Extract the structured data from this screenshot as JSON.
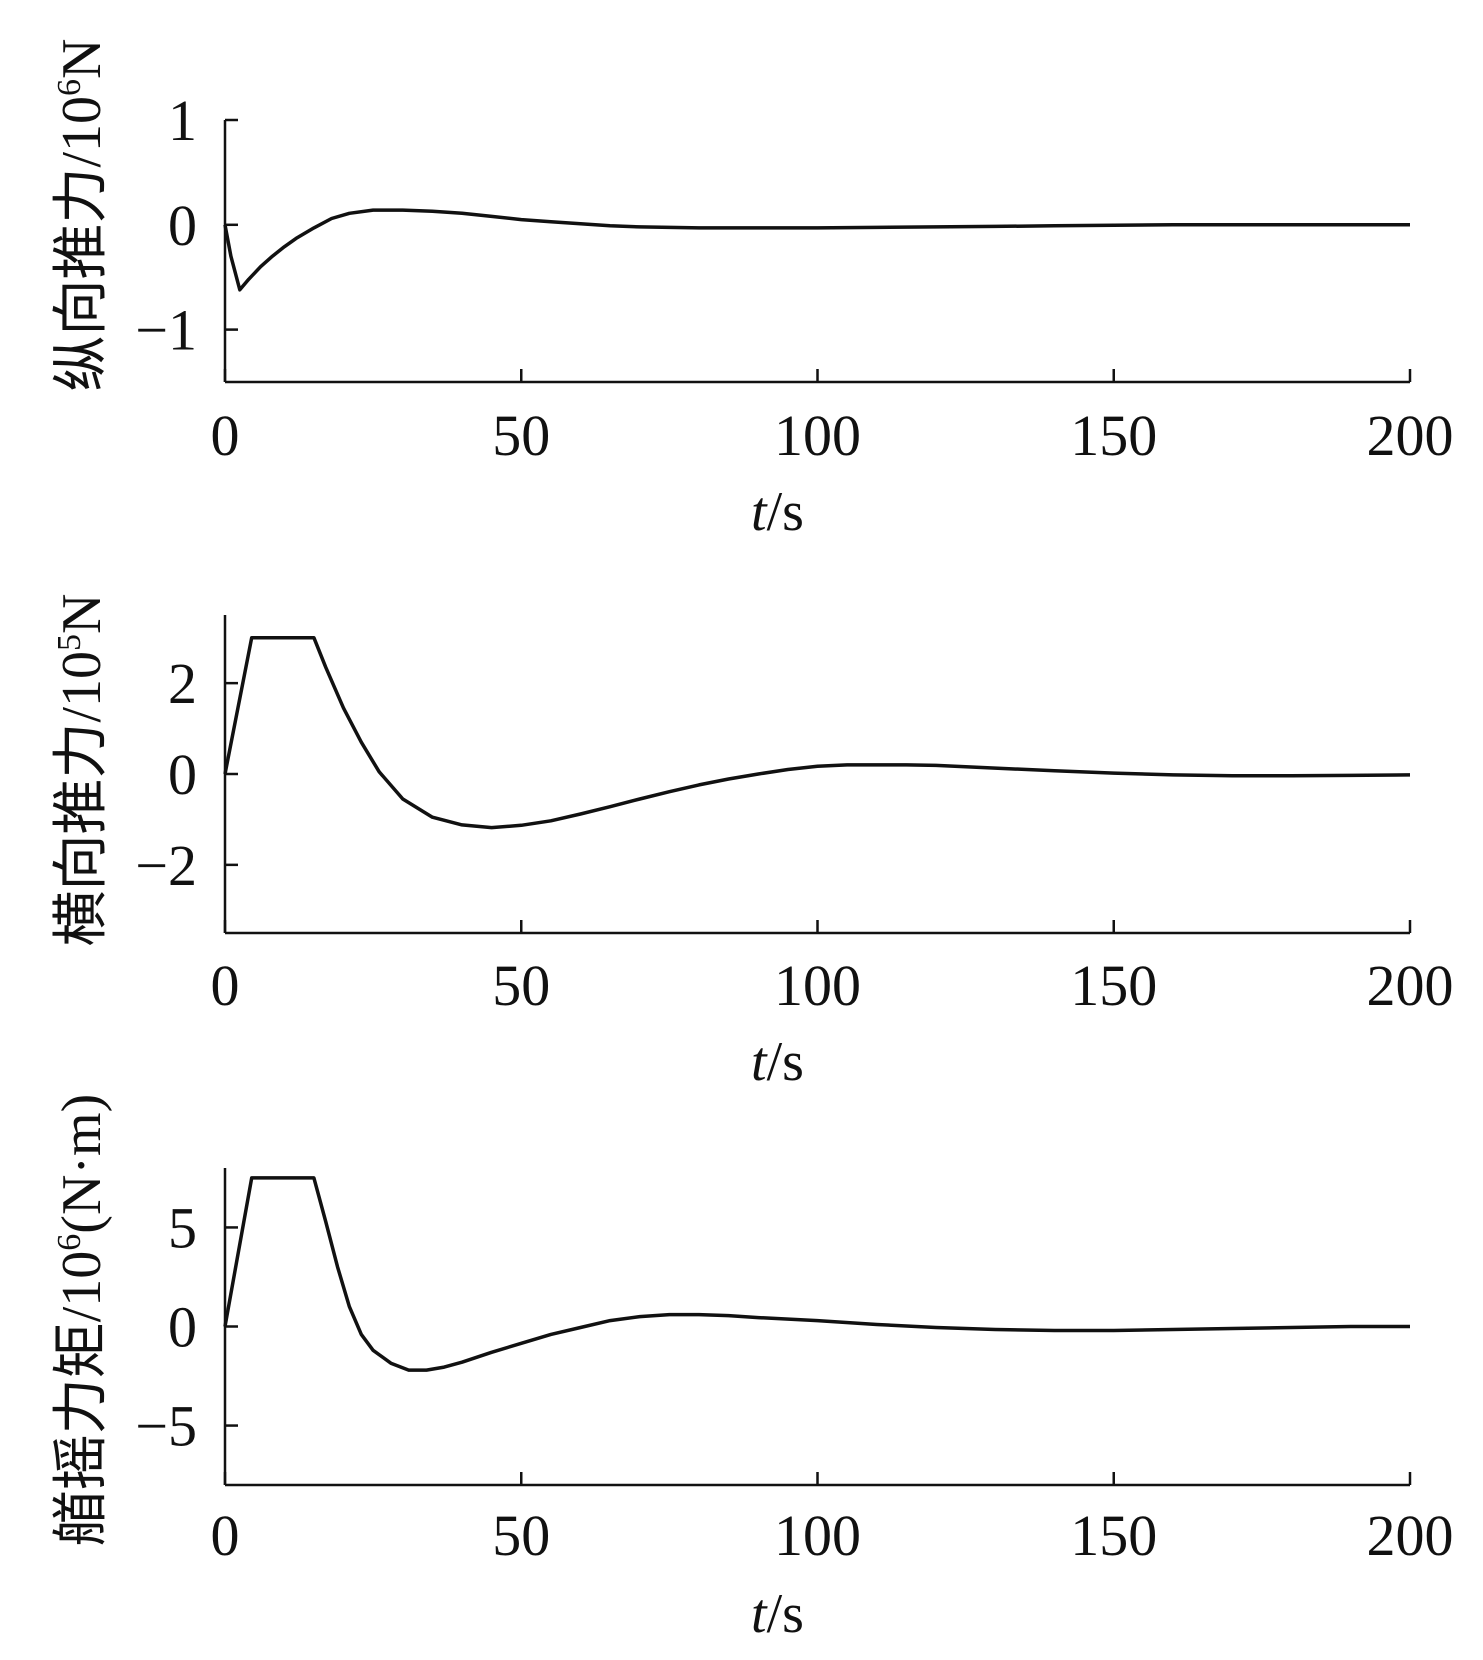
{
  "chart_data": [
    {
      "type": "line",
      "name": "surge-thrust",
      "title": "",
      "xlabel_italic": "t",
      "xlabel_unit": "/s",
      "ylabel_main": "纵向推力/10",
      "ylabel_sup": "6",
      "ylabel_tail": "N",
      "xlim": [
        0,
        200
      ],
      "ylim": [
        -1.5,
        1
      ],
      "xticks": [
        0,
        50,
        100,
        150,
        200
      ],
      "xtick_labels": [
        "0",
        "50",
        "100",
        "150",
        "200"
      ],
      "yticks": [
        -1,
        0,
        1
      ],
      "ytick_labels": [
        "−1",
        "0",
        "1"
      ],
      "series": [
        {
          "name": "纵向推力",
          "x": [
            0,
            1,
            2.5,
            4,
            6,
            8,
            10,
            12,
            15,
            18,
            21,
            25,
            30,
            35,
            40,
            45,
            50,
            55,
            60,
            65,
            70,
            75,
            80,
            90,
            100,
            110,
            120,
            130,
            140,
            150,
            160,
            170,
            180,
            190,
            200
          ],
          "y": [
            0,
            -0.3,
            -0.62,
            -0.52,
            -0.4,
            -0.3,
            -0.21,
            -0.13,
            -0.03,
            0.06,
            0.11,
            0.14,
            0.14,
            0.13,
            0.11,
            0.08,
            0.05,
            0.03,
            0.01,
            -0.01,
            -0.02,
            -0.025,
            -0.03,
            -0.03,
            -0.03,
            -0.025,
            -0.02,
            -0.015,
            -0.01,
            -0.005,
            0,
            0,
            0,
            0,
            0
          ]
        }
      ]
    },
    {
      "type": "line",
      "name": "sway-thrust",
      "title": "",
      "xlabel_italic": "t",
      "xlabel_unit": "/s",
      "ylabel_main": "横向推力/10",
      "ylabel_sup": "5",
      "ylabel_tail": "N",
      "xlim": [
        0,
        200
      ],
      "ylim": [
        -3.5,
        3.5
      ],
      "xticks": [
        0,
        50,
        100,
        150,
        200
      ],
      "xtick_labels": [
        "0",
        "50",
        "100",
        "150",
        "200"
      ],
      "yticks": [
        -2,
        0,
        2
      ],
      "ytick_labels": [
        "−2",
        "0",
        "2"
      ],
      "series": [
        {
          "name": "横向推力",
          "x": [
            0,
            4.5,
            15,
            17,
            20,
            23,
            26,
            30,
            35,
            40,
            45,
            50,
            55,
            60,
            65,
            70,
            75,
            80,
            85,
            90,
            95,
            100,
            105,
            110,
            115,
            120,
            130,
            140,
            150,
            160,
            170,
            180,
            190,
            200
          ],
          "y": [
            0,
            3.0,
            3.0,
            2.35,
            1.45,
            0.7,
            0.05,
            -0.55,
            -0.95,
            -1.12,
            -1.18,
            -1.13,
            -1.03,
            -0.88,
            -0.72,
            -0.55,
            -0.39,
            -0.24,
            -0.11,
            0.0,
            0.1,
            0.17,
            0.2,
            0.2,
            0.2,
            0.19,
            0.13,
            0.07,
            0.02,
            -0.02,
            -0.04,
            -0.04,
            -0.03,
            -0.02
          ]
        }
      ]
    },
    {
      "type": "line",
      "name": "yaw-moment",
      "title": "",
      "xlabel_italic": "t",
      "xlabel_unit": "/s",
      "ylabel_main": "艏摇力矩/10",
      "ylabel_sup": "6",
      "ylabel_tail": "(N·m)",
      "xlim": [
        0,
        200
      ],
      "ylim": [
        -8,
        8
      ],
      "xticks": [
        0,
        50,
        100,
        150,
        200
      ],
      "xtick_labels": [
        "0",
        "50",
        "100",
        "150",
        "200"
      ],
      "yticks": [
        -5,
        0,
        5
      ],
      "ytick_labels": [
        "−5",
        "0",
        "5"
      ],
      "series": [
        {
          "name": "艏摇力矩",
          "x": [
            0,
            4.5,
            15,
            17,
            19,
            21,
            23,
            25,
            28,
            31,
            34,
            37,
            40,
            45,
            50,
            55,
            60,
            65,
            70,
            75,
            80,
            85,
            90,
            100,
            110,
            120,
            130,
            140,
            150,
            160,
            170,
            180,
            190,
            200
          ],
          "y": [
            0,
            7.5,
            7.5,
            5.3,
            3.0,
            1.0,
            -0.4,
            -1.2,
            -1.85,
            -2.2,
            -2.2,
            -2.05,
            -1.8,
            -1.3,
            -0.85,
            -0.4,
            -0.05,
            0.3,
            0.5,
            0.6,
            0.6,
            0.55,
            0.45,
            0.3,
            0.1,
            -0.05,
            -0.15,
            -0.2,
            -0.2,
            -0.15,
            -0.1,
            -0.05,
            0,
            0
          ]
        }
      ]
    }
  ]
}
